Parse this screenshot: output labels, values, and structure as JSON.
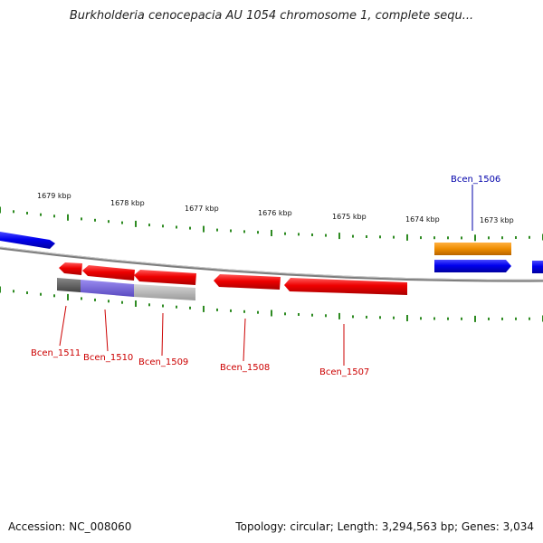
{
  "title": "Burkholderia cenocepacia AU 1054 chromosome 1, complete sequ...",
  "footer": {
    "accession": "Accession: NC_008060",
    "stats": "Topology: circular; Length: 3,294,563 bp; Genes: 3,034"
  },
  "colors": {
    "genome_line": "#8a8a8a",
    "ticks": "#2e8b22",
    "gene_red": "#ee0000",
    "gene_blue": "#0000ee",
    "gene_orange": "#ee8c00",
    "gene_grey": "#555555",
    "gene_purple": "#7a6ad8",
    "gene_lightgrey": "#b8b8b8",
    "label_red": "#cc0000",
    "label_blue": "#0000aa"
  },
  "kbp_labels": [
    "1679 kbp",
    "1678 kbp",
    "1677 kbp",
    "1676 kbp",
    "1675 kbp",
    "1674 kbp",
    "1673 kbp"
  ],
  "gene_labels": {
    "bcen_1506": "Bcen_1506",
    "bcen_1507": "Bcen_1507",
    "bcen_1508": "Bcen_1508",
    "bcen_1509": "Bcen_1509",
    "bcen_1510": "Bcen_1510",
    "bcen_1511": "Bcen_1511"
  }
}
